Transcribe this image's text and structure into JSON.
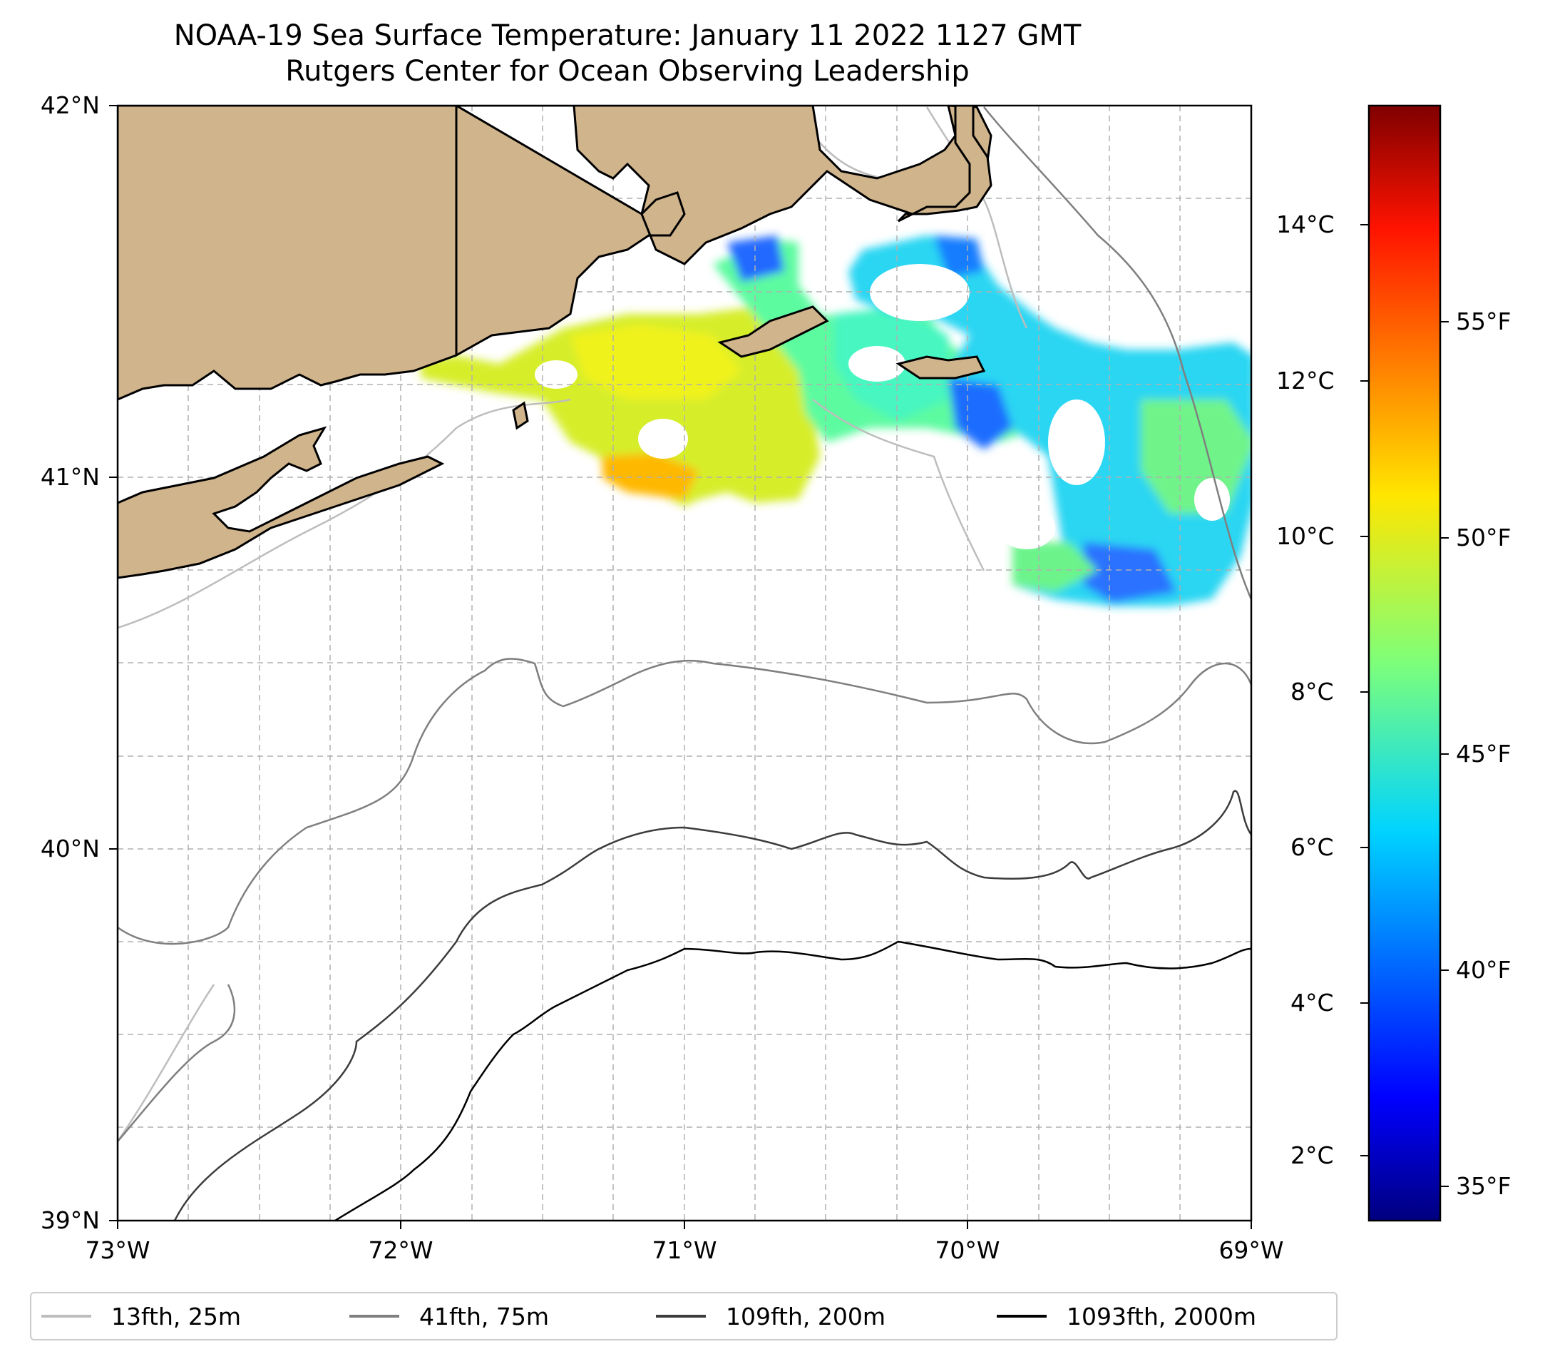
{
  "title": "NOAA-19 Sea Surface Temperature: January 11 2022 1127 GMT",
  "subtitle": "Rutgers Center for Ocean Observing Leadership",
  "map": {
    "lat_range": [
      39,
      42
    ],
    "lon_range": [
      -73,
      -69
    ],
    "lat_ticks": [
      "42°N",
      "41°N",
      "40°N",
      "39°N"
    ],
    "lon_ticks": [
      "73°W",
      "72°W",
      "71°W",
      "70°W",
      "69°W"
    ],
    "gridlines": true,
    "land_color": "#d0b48c"
  },
  "colorbar": {
    "colormap": "jet",
    "celsius_ticks": [
      "14°C",
      "12°C",
      "10°C",
      "8°C",
      "6°C",
      "4°C",
      "2°C"
    ],
    "fahrenheit_ticks": [
      "55°F",
      "50°F",
      "45°F",
      "40°F",
      "35°F"
    ]
  },
  "legend": [
    {
      "label": "13fth, 25m",
      "color": "#bdbdbd"
    },
    {
      "label": "41fth, 75m",
      "color": "#7f7f7f"
    },
    {
      "label": "109fth, 200m",
      "color": "#3c3c3c"
    },
    {
      "label": "1093fth, 2000m",
      "color": "#000000"
    }
  ]
}
